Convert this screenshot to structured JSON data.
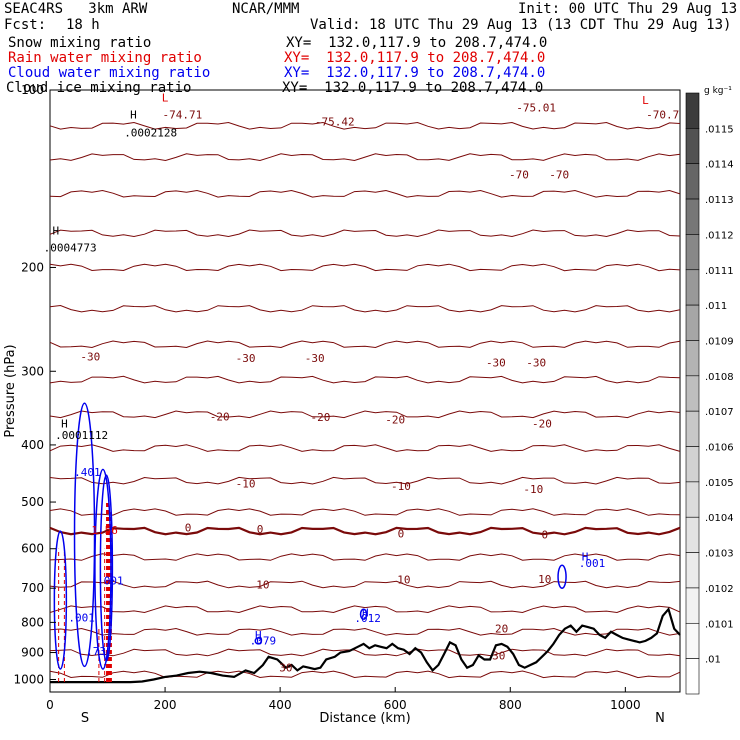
{
  "header": {
    "model": "SEAC4RS   3km ARW",
    "org": "NCAR/MMM",
    "init": "Init: 00 UTC Thu 29 Aug 13",
    "fcst_label": "Fcst:",
    "fcst_value": "18 h",
    "valid": "Valid: 18 UTC Thu 29 Aug 13 (13 CDT Thu 29 Aug 13)"
  },
  "fields": [
    {
      "name": "Snow mixing ratio",
      "xy": "XY=  132.0,117.9 to 208.7,474.0",
      "color": "#000000"
    },
    {
      "name": "Rain water mixing ratio",
      "xy": "XY=  132.0,117.9 to 208.7,474.0",
      "color": "#e00000"
    },
    {
      "name": "Cloud water mixing ratio",
      "xy": "XY=  132.0,117.9 to 208.7,474.0",
      "color": "#0000ee"
    },
    {
      "name": "Cloud ice mixing ratio",
      "xy": "XY=  132.0,117.9 to 208.7,474.0",
      "color": "#000000"
    }
  ],
  "chart_data": {
    "type": "line",
    "xlabel": "Distance (km)",
    "ylabel": "Pressure (hPa)",
    "x_ticks": [
      0,
      200,
      400,
      600,
      800,
      1000
    ],
    "y_ticks": [
      100,
      200,
      300,
      400,
      500,
      600,
      700,
      800,
      900,
      1000
    ],
    "xlim": [
      0,
      1095
    ],
    "ylim": [
      1050,
      100
    ],
    "y_scale": "log-pressure",
    "x_end_labels": [
      "S",
      "N"
    ],
    "colorbar": {
      "unit": "g kg⁻¹",
      "labels": [
        ".0115",
        ".0114",
        ".0113",
        ".0112",
        ".0111",
        ".011",
        ".0109",
        ".0108",
        ".0107",
        ".0106",
        ".0105",
        ".0104",
        ".0103",
        ".0102",
        ".0101",
        ".01"
      ],
      "colors": [
        "#3c3c3c",
        "#525252",
        "#666666",
        "#777777",
        "#888888",
        "#999999",
        "#a6a6a6",
        "#b3b3b3",
        "#bebebe",
        "#c8c8c8",
        "#d2d2d2",
        "#dbdbdb",
        "#e3e3e3",
        "#ebebeb",
        "#f2f2f2",
        "#f8f8f8",
        "#ffffff"
      ]
    },
    "temperature_isotherms": {
      "color": "#7a0a0a",
      "levels": [
        -70,
        -30,
        -20,
        -10,
        0,
        10,
        20,
        30
      ],
      "labels": [
        {
          "text": "-70",
          "x": 815,
          "p": 139,
          "value": -70
        },
        {
          "text": "-70",
          "x": 885,
          "p": 139,
          "value": -70
        },
        {
          "text": "-30",
          "x": 70,
          "p": 283,
          "value": -30
        },
        {
          "text": "-30",
          "x": 340,
          "p": 285,
          "value": -30
        },
        {
          "text": "-30",
          "x": 460,
          "p": 285,
          "value": -30
        },
        {
          "text": "-30",
          "x": 775,
          "p": 290,
          "value": -30
        },
        {
          "text": "-30",
          "x": 845,
          "p": 290,
          "value": -30
        },
        {
          "text": "-20",
          "x": 295,
          "p": 358,
          "value": -20
        },
        {
          "text": "-20",
          "x": 470,
          "p": 359,
          "value": -20
        },
        {
          "text": "-20",
          "x": 600,
          "p": 362,
          "value": -20
        },
        {
          "text": "-20",
          "x": 855,
          "p": 368,
          "value": -20
        },
        {
          "text": "-10",
          "x": 340,
          "p": 465,
          "value": -10
        },
        {
          "text": "-10",
          "x": 610,
          "p": 470,
          "value": -10
        },
        {
          "text": "-10",
          "x": 840,
          "p": 475,
          "value": -10
        },
        {
          "text": "0",
          "x": 240,
          "p": 552,
          "value": 0
        },
        {
          "text": "0",
          "x": 365,
          "p": 555,
          "value": 0
        },
        {
          "text": "0",
          "x": 610,
          "p": 565,
          "value": 0
        },
        {
          "text": "0",
          "x": 860,
          "p": 568,
          "value": 0
        },
        {
          "text": "10",
          "x": 370,
          "p": 690,
          "value": 10
        },
        {
          "text": "10",
          "x": 615,
          "p": 677,
          "value": 10
        },
        {
          "text": "10",
          "x": 860,
          "p": 675,
          "value": 10
        },
        {
          "text": "20",
          "x": 785,
          "p": 820,
          "value": 20
        },
        {
          "text": "30",
          "x": 780,
          "p": 910,
          "value": 30
        },
        {
          "text": "30",
          "x": 410,
          "p": 955,
          "value": 30
        }
      ]
    },
    "extrema_labels": [
      {
        "text": "L",
        "x": 200,
        "p": 103,
        "color": "#e00000"
      },
      {
        "text": "-74.71",
        "x": 230,
        "p": 110,
        "color": "#7a0a0a"
      },
      {
        "text": "-75.42",
        "x": 495,
        "p": 113,
        "color": "#7a0a0a"
      },
      {
        "text": "-75.01",
        "x": 845,
        "p": 107,
        "color": "#7a0a0a"
      },
      {
        "text": "L",
        "x": 1035,
        "p": 104,
        "color": "#e00000"
      },
      {
        "text": "-70.7",
        "x": 1065,
        "p": 110,
        "color": "#7a0a0a"
      },
      {
        "text": "H",
        "x": 145,
        "p": 110,
        "color": "#000000"
      },
      {
        "text": ".0002128",
        "x": 175,
        "p": 118,
        "color": "#000000"
      },
      {
        "text": "H",
        "x": 10,
        "p": 173,
        "color": "#000000"
      },
      {
        "text": ".0004773",
        "x": 35,
        "p": 185,
        "color": "#000000"
      },
      {
        "text": "H",
        "x": 25,
        "p": 368,
        "color": "#000000"
      },
      {
        "text": ".0001112",
        "x": 55,
        "p": 385,
        "color": "#000000"
      },
      {
        "text": ".401",
        "x": 65,
        "p": 445,
        "color": "#0000ee"
      },
      {
        "text": "1.56",
        "x": 95,
        "p": 558,
        "color": "#e00000"
      },
      {
        "text": ".001",
        "x": 105,
        "p": 679,
        "color": "#0000ee"
      },
      {
        "text": ".001",
        "x": 55,
        "p": 785,
        "color": "#0000ee"
      },
      {
        "text": "H",
        "x": 548,
        "p": 770,
        "color": "#0000ee"
      },
      {
        "text": ".012",
        "x": 552,
        "p": 786,
        "color": "#0000ee"
      },
      {
        "text": "H",
        "x": 930,
        "p": 618,
        "color": "#0000ee"
      },
      {
        "text": ".001",
        "x": 942,
        "p": 635,
        "color": "#0000ee"
      },
      {
        "text": "H",
        "x": 362,
        "p": 840,
        "color": "#0000ee"
      },
      {
        "text": ".079",
        "x": 370,
        "p": 858,
        "color": "#0000ee"
      },
      {
        "text": ".73",
        "x": 80,
        "p": 895,
        "color": "#0000ee"
      }
    ],
    "terrain_surface_pressure": {
      "x": [
        0,
        30,
        60,
        100,
        140,
        160,
        180,
        200,
        220,
        240,
        260,
        280,
        300,
        320,
        340,
        355,
        370,
        380,
        395,
        410,
        420,
        430,
        440,
        450,
        460,
        470,
        480,
        495,
        505,
        520,
        535,
        545,
        555,
        565,
        575,
        585,
        595,
        605,
        615,
        625,
        635,
        645,
        655,
        665,
        675,
        685,
        695,
        705,
        715,
        725,
        735,
        745,
        755,
        765,
        775,
        785,
        795,
        805,
        815,
        825,
        835,
        845,
        855,
        865,
        875,
        885,
        895,
        905,
        915,
        925,
        935,
        945,
        955,
        965,
        975,
        985,
        995,
        1005,
        1015,
        1025,
        1035,
        1045,
        1055,
        1065,
        1075,
        1085,
        1095
      ],
      "p": [
        1010,
        1010,
        1010,
        1010,
        1010,
        1008,
        1000,
        990,
        985,
        975,
        970,
        975,
        985,
        990,
        965,
        975,
        945,
        915,
        925,
        955,
        945,
        965,
        950,
        955,
        960,
        955,
        925,
        915,
        900,
        895,
        880,
        870,
        885,
        875,
        880,
        885,
        870,
        885,
        890,
        905,
        885,
        900,
        935,
        965,
        945,
        905,
        865,
        875,
        925,
        955,
        945,
        910,
        925,
        925,
        875,
        870,
        880,
        905,
        945,
        955,
        945,
        935,
        915,
        895,
        870,
        840,
        820,
        810,
        830,
        810,
        815,
        820,
        840,
        850,
        830,
        840,
        850,
        855,
        860,
        865,
        860,
        850,
        835,
        780,
        760,
        820,
        840
      ]
    }
  }
}
